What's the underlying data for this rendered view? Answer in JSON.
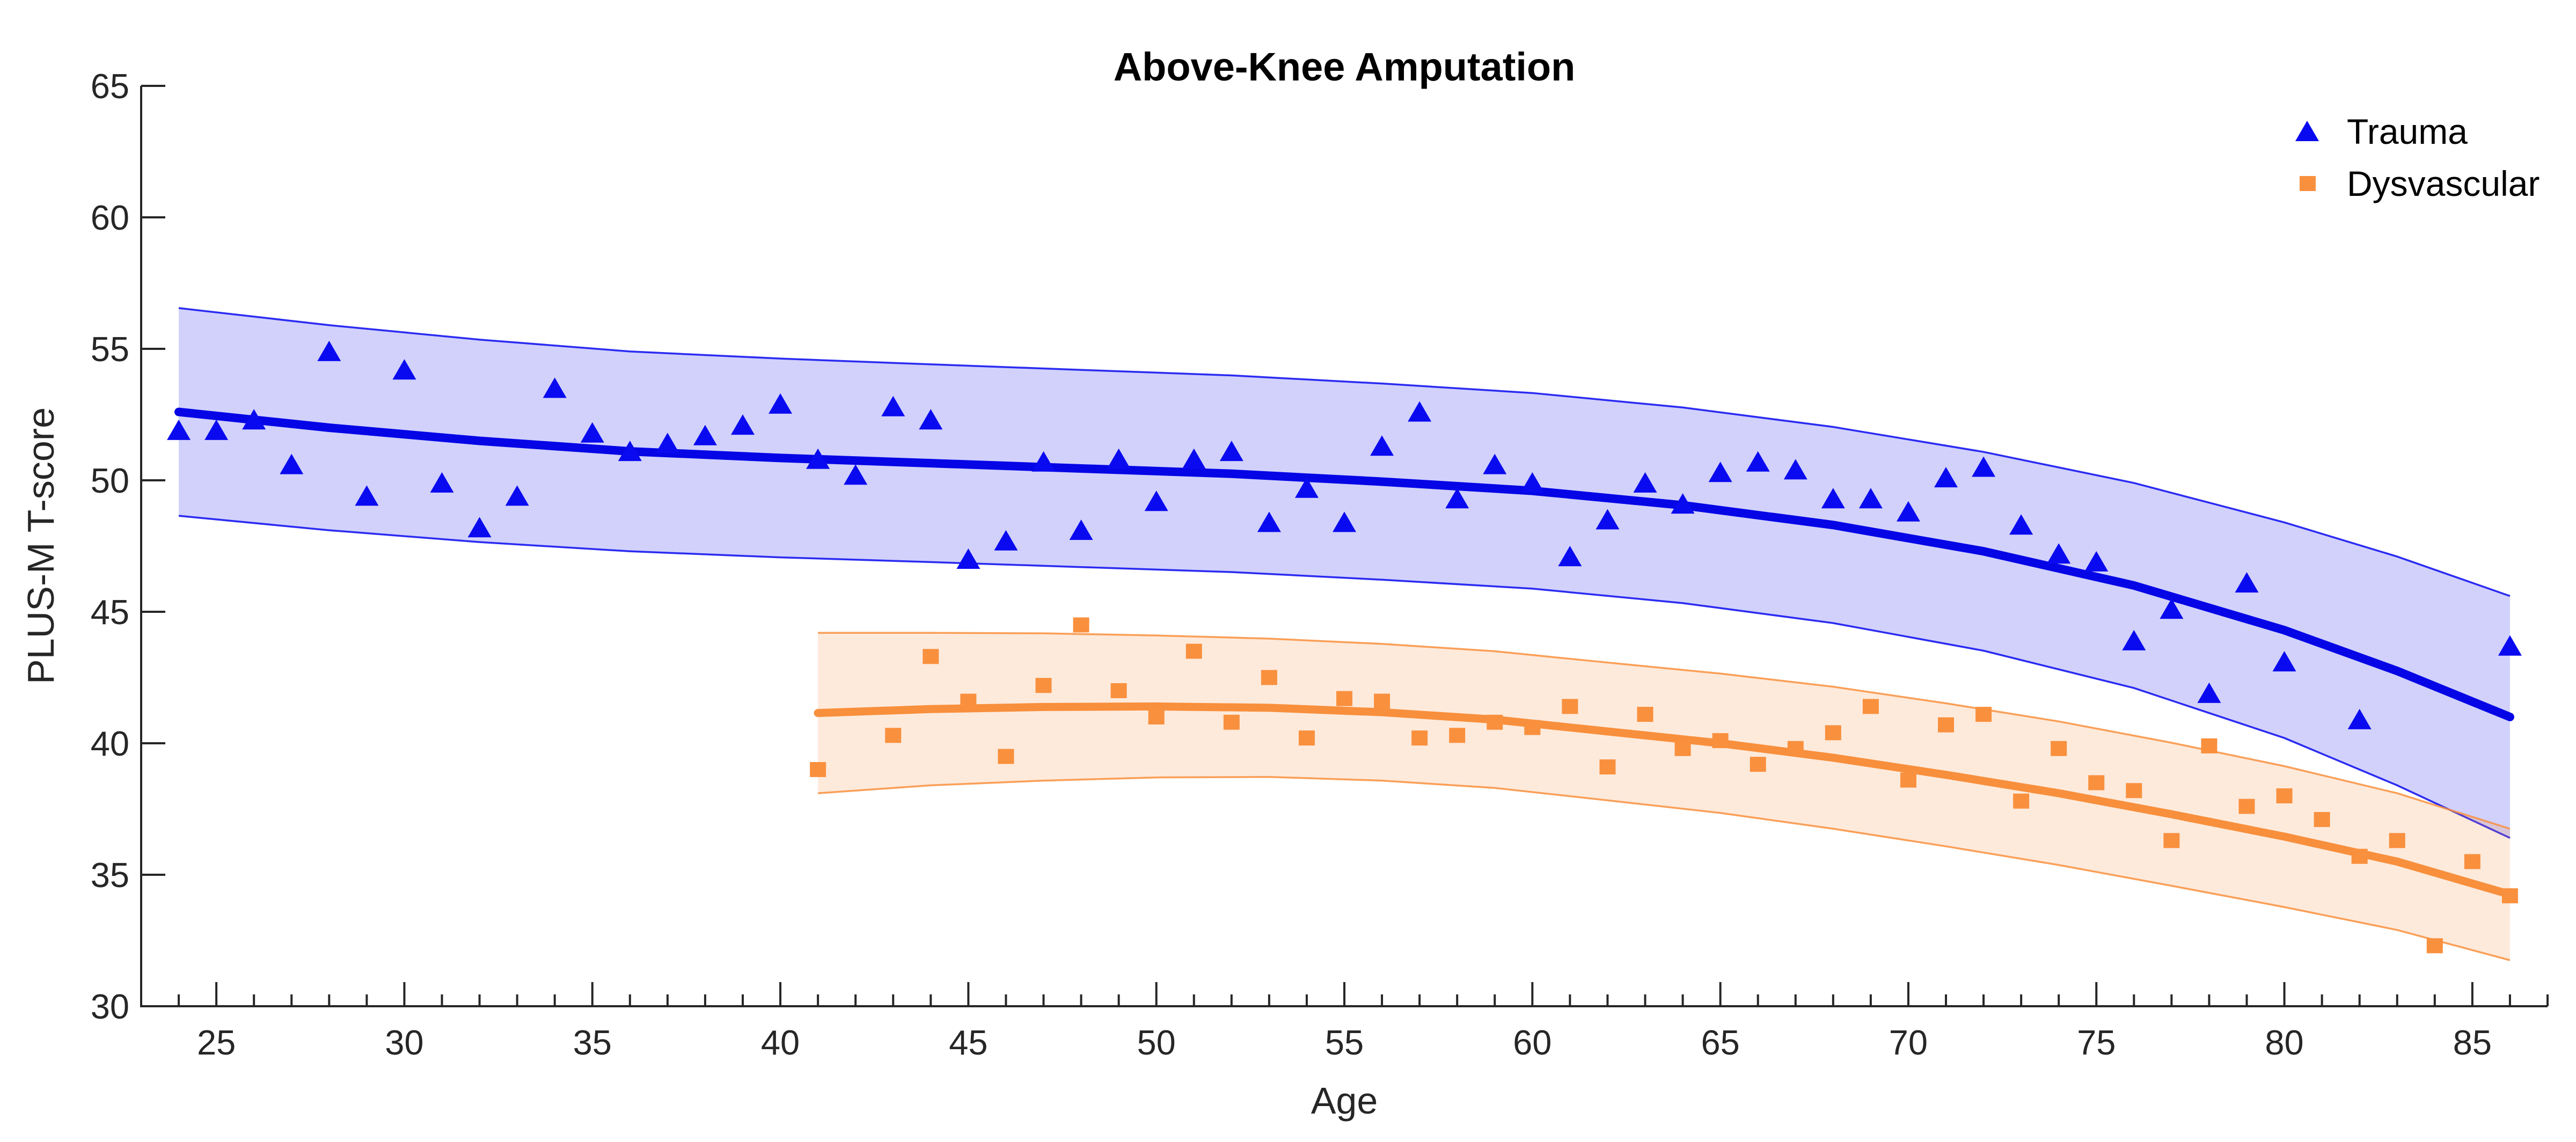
{
  "chart_data": {
    "type": "scatter",
    "title": "Above-Knee Amputation",
    "xlabel": "Age",
    "ylabel": "PLUS-M T-score",
    "xlim": [
      23,
      87
    ],
    "ylim": [
      30,
      65
    ],
    "x_major_ticks": [
      25,
      30,
      35,
      40,
      45,
      50,
      55,
      60,
      65,
      70,
      75,
      80,
      85
    ],
    "x_minor_tick_step": 1,
    "y_major_ticks": [
      30,
      35,
      40,
      45,
      50,
      55,
      60,
      65
    ],
    "grid": false,
    "axis_color": "#262626",
    "legend": {
      "position": "top-right",
      "box": false,
      "entries": [
        {
          "label": "Trauma",
          "marker": "triangle",
          "color": "#0a0af0"
        },
        {
          "label": "Dysvascular",
          "marker": "square",
          "color": "#f9903e"
        }
      ]
    },
    "series": [
      {
        "name": "Trauma",
        "marker": "triangle",
        "color": "#0a0af0",
        "line_color": "#0505e6",
        "band_fill_opacity": 0.19,
        "points": [
          [
            24,
            51.9
          ],
          [
            25,
            51.9
          ],
          [
            26,
            52.3
          ],
          [
            27,
            50.6
          ],
          [
            28,
            54.9
          ],
          [
            29,
            49.4
          ],
          [
            30,
            54.2
          ],
          [
            31,
            49.9
          ],
          [
            32,
            48.2
          ],
          [
            33,
            49.4
          ],
          [
            34,
            53.5
          ],
          [
            35,
            51.8
          ],
          [
            36,
            51.1
          ],
          [
            37,
            51.4
          ],
          [
            38,
            51.7
          ],
          [
            39,
            52.1
          ],
          [
            40,
            52.9
          ],
          [
            41,
            50.8
          ],
          [
            42,
            50.2
          ],
          [
            43,
            52.8
          ],
          [
            44,
            52.3
          ],
          [
            45,
            47.0
          ],
          [
            46,
            47.7
          ],
          [
            47,
            50.7
          ],
          [
            48,
            48.1
          ],
          [
            49,
            50.8
          ],
          [
            50,
            49.2
          ],
          [
            51,
            50.8
          ],
          [
            52,
            51.1
          ],
          [
            53,
            48.4
          ],
          [
            54,
            49.7
          ],
          [
            55,
            48.4
          ],
          [
            56,
            51.3
          ],
          [
            57,
            52.6
          ],
          [
            58,
            49.3
          ],
          [
            59,
            50.6
          ],
          [
            60,
            49.9
          ],
          [
            61,
            47.1
          ],
          [
            62,
            48.5
          ],
          [
            63,
            49.9
          ],
          [
            64,
            49.1
          ],
          [
            65,
            50.3
          ],
          [
            66,
            50.7
          ],
          [
            67,
            50.4
          ],
          [
            68,
            49.3
          ],
          [
            69,
            49.3
          ],
          [
            70,
            48.8
          ],
          [
            71,
            50.1
          ],
          [
            72,
            50.5
          ],
          [
            73,
            48.3
          ],
          [
            74,
            47.2
          ],
          [
            75,
            46.9
          ],
          [
            76,
            43.9
          ],
          [
            77,
            45.1
          ],
          [
            78,
            41.9
          ],
          [
            79,
            46.1
          ],
          [
            80,
            43.1
          ],
          [
            82,
            40.9
          ],
          [
            86,
            43.7
          ]
        ],
        "fit": [
          [
            24,
            52.6
          ],
          [
            28,
            52.0
          ],
          [
            32,
            51.5
          ],
          [
            36,
            51.1
          ],
          [
            40,
            50.85
          ],
          [
            44,
            50.65
          ],
          [
            48,
            50.45
          ],
          [
            52,
            50.25
          ],
          [
            56,
            49.95
          ],
          [
            60,
            49.6
          ],
          [
            64,
            49.05
          ],
          [
            68,
            48.3
          ],
          [
            72,
            47.3
          ],
          [
            76,
            46.0
          ],
          [
            80,
            44.3
          ],
          [
            83,
            42.75
          ],
          [
            86,
            41.0
          ]
        ],
        "band": [
          [
            24,
            48.65,
            56.55
          ],
          [
            28,
            48.1,
            55.9
          ],
          [
            32,
            47.65,
            55.35
          ],
          [
            36,
            47.3,
            54.9
          ],
          [
            40,
            47.07,
            54.63
          ],
          [
            44,
            46.89,
            54.41
          ],
          [
            48,
            46.7,
            54.2
          ],
          [
            52,
            46.51,
            53.99
          ],
          [
            56,
            46.22,
            53.68
          ],
          [
            60,
            45.88,
            53.32
          ],
          [
            64,
            45.33,
            52.77
          ],
          [
            68,
            44.57,
            52.03
          ],
          [
            72,
            43.52,
            51.08
          ],
          [
            76,
            42.1,
            49.9
          ],
          [
            80,
            40.2,
            48.4
          ],
          [
            83,
            38.4,
            47.1
          ],
          [
            86,
            36.4,
            45.6
          ]
        ]
      },
      {
        "name": "Dysvascular",
        "marker": "square",
        "color": "#f9903e",
        "line_color": "#f88f3c",
        "band_fill_opacity": 0.19,
        "points": [
          [
            41,
            39.0
          ],
          [
            43,
            40.3
          ],
          [
            44,
            43.3
          ],
          [
            45,
            41.6
          ],
          [
            46,
            39.5
          ],
          [
            47,
            42.2
          ],
          [
            48,
            44.5
          ],
          [
            49,
            42.0
          ],
          [
            50,
            41.0
          ],
          [
            51,
            43.5
          ],
          [
            52,
            40.8
          ],
          [
            53,
            42.5
          ],
          [
            54,
            40.2
          ],
          [
            55,
            41.7
          ],
          [
            56,
            41.6
          ],
          [
            57,
            40.2
          ],
          [
            58,
            40.3
          ],
          [
            59,
            40.8
          ],
          [
            60,
            40.6
          ],
          [
            61,
            41.4
          ],
          [
            62,
            39.1
          ],
          [
            63,
            41.1
          ],
          [
            64,
            39.8
          ],
          [
            65,
            40.1
          ],
          [
            66,
            39.2
          ],
          [
            67,
            39.8
          ],
          [
            68,
            40.4
          ],
          [
            69,
            41.4
          ],
          [
            70,
            38.6
          ],
          [
            71,
            40.7
          ],
          [
            72,
            41.1
          ],
          [
            73,
            37.8
          ],
          [
            74,
            39.8
          ],
          [
            75,
            38.5
          ],
          [
            76,
            38.2
          ],
          [
            77,
            36.3
          ],
          [
            78,
            39.9
          ],
          [
            79,
            37.6
          ],
          [
            80,
            38.0
          ],
          [
            81,
            37.1
          ],
          [
            82,
            35.7
          ],
          [
            83,
            36.3
          ],
          [
            84,
            32.3
          ],
          [
            85,
            35.5
          ],
          [
            86,
            34.2
          ]
        ],
        "fit": [
          [
            41,
            41.15
          ],
          [
            44,
            41.3
          ],
          [
            47,
            41.38
          ],
          [
            50,
            41.4
          ],
          [
            53,
            41.35
          ],
          [
            56,
            41.18
          ],
          [
            59,
            40.9
          ],
          [
            62,
            40.45
          ],
          [
            65,
            40.0
          ],
          [
            68,
            39.45
          ],
          [
            71,
            38.8
          ],
          [
            74,
            38.1
          ],
          [
            77,
            37.3
          ],
          [
            80,
            36.45
          ],
          [
            83,
            35.5
          ],
          [
            86,
            34.25
          ]
        ],
        "band": [
          [
            41,
            38.1,
            44.2
          ],
          [
            44,
            38.4,
            44.2
          ],
          [
            47,
            38.58,
            44.18
          ],
          [
            50,
            38.7,
            44.1
          ],
          [
            53,
            38.72,
            43.98
          ],
          [
            56,
            38.58,
            43.78
          ],
          [
            59,
            38.3,
            43.5
          ],
          [
            62,
            37.83,
            43.07
          ],
          [
            65,
            37.35,
            42.65
          ],
          [
            68,
            36.75,
            42.15
          ],
          [
            71,
            36.08,
            41.52
          ],
          [
            74,
            35.37,
            40.83
          ],
          [
            77,
            34.58,
            40.02
          ],
          [
            80,
            33.77,
            39.13
          ],
          [
            83,
            32.9,
            38.1
          ],
          [
            86,
            31.75,
            36.75
          ]
        ]
      }
    ]
  }
}
